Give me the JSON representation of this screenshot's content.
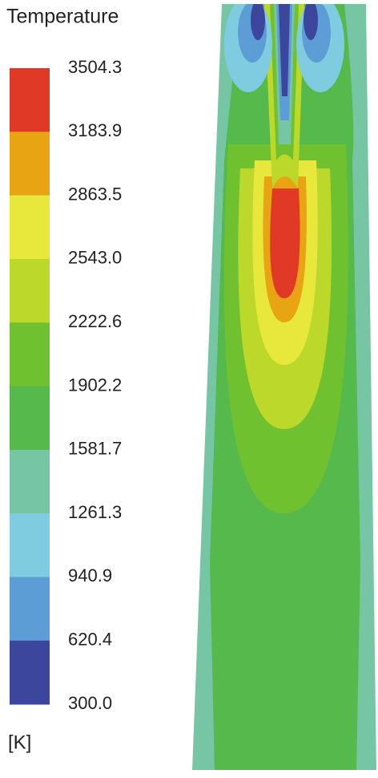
{
  "legend": {
    "title": "Temperature",
    "unit": "[K]",
    "ticks": [
      "3504.3",
      "3183.9",
      "2863.5",
      "2543.0",
      "2222.6",
      "1902.2",
      "1581.7",
      "1261.3",
      "940.9",
      "620.4",
      "300.0"
    ],
    "colors": [
      "#e03a27",
      "#e9a414",
      "#e8e83c",
      "#bcd82a",
      "#6fc12f",
      "#55b94c",
      "#76c6a6",
      "#7fcce0",
      "#5c9dd6",
      "#3b469c"
    ]
  }
}
